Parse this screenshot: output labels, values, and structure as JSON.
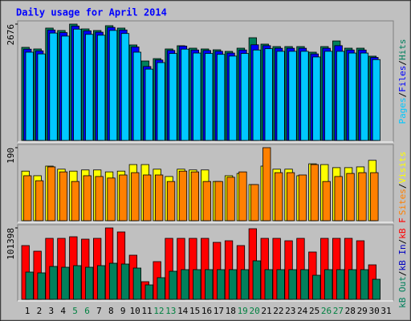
{
  "title": "Daily usage for April 2014",
  "legend_separator": "/",
  "highlight_categories": [
    "5",
    "6",
    "12",
    "13",
    "19",
    "20",
    "26",
    "27"
  ],
  "highlight_color": "#008040",
  "chart_data": [
    {
      "type": "bar",
      "ylim": [
        0,
        2676
      ],
      "yticks": [
        2676
      ],
      "series": [
        {
          "name": "Hits",
          "color": "#00805c",
          "values": [
            2141,
            2104,
            2584,
            2528,
            2676,
            2565,
            2528,
            2639,
            2584,
            2196,
            1827,
            1882,
            2104,
            2178,
            2122,
            2104,
            2085,
            2048,
            2122,
            2362,
            2215,
            2159,
            2159,
            2159,
            2030,
            2159,
            2288,
            2122,
            2122,
            1938,
            null
          ]
        },
        {
          "name": "Files",
          "color": "#0000ff",
          "values": [
            2100,
            2060,
            2540,
            2480,
            2630,
            2520,
            2490,
            2600,
            2540,
            2150,
            1700,
            1850,
            2070,
            2170,
            2080,
            2070,
            2050,
            2010,
            2080,
            2200,
            2180,
            2120,
            2120,
            2120,
            1990,
            2120,
            2180,
            2080,
            2080,
            1910,
            null
          ]
        },
        {
          "name": "Pages",
          "color": "#00c8ff",
          "values": [
            2030,
            1990,
            2470,
            2400,
            2560,
            2440,
            2420,
            2530,
            2460,
            2030,
            1640,
            1790,
            2000,
            2100,
            2010,
            2000,
            1980,
            1940,
            2000,
            2080,
            2110,
            2050,
            2050,
            2050,
            1920,
            2050,
            2050,
            2010,
            2010,
            1860,
            null
          ]
        }
      ]
    },
    {
      "type": "bar",
      "ylim": [
        0,
        190
      ],
      "yticks": [
        190
      ],
      "series": [
        {
          "name": "Visits",
          "color": "#ffff00",
          "values": [
            129,
            117,
            142,
            134,
            129,
            132,
            132,
            127,
            129,
            146,
            146,
            134,
            115,
            134,
            132,
            132,
            102,
            117,
            123,
            94,
            142,
            134,
            134,
            117,
            148,
            146,
            138,
            138,
            140,
            157,
            null
          ]
        },
        {
          "name": "Sites",
          "color": "#ff8000",
          "values": [
            117,
            104,
            140,
            127,
            102,
            117,
            115,
            111,
            119,
            125,
            119,
            119,
            102,
            129,
            127,
            102,
            102,
            113,
            127,
            94,
            190,
            125,
            125,
            119,
            146,
            102,
            115,
            123,
            125,
            125,
            null
          ]
        }
      ]
    },
    {
      "type": "bar",
      "ylim": [
        0,
        101398
      ],
      "yticks": [
        101398
      ],
      "categories": [
        "1",
        "2",
        "3",
        "4",
        "5",
        "6",
        "7",
        "8",
        "9",
        "10",
        "11",
        "12",
        "13",
        "14",
        "15",
        "16",
        "17",
        "18",
        "19",
        "20",
        "21",
        "22",
        "23",
        "24",
        "25",
        "26",
        "27",
        "28",
        "29",
        "30",
        "31"
      ],
      "series": [
        {
          "name": "kB F",
          "color": "#ff0000",
          "values": [
            76333,
            68358,
            86587,
            86587,
            88865,
            85448,
            86587,
            101398,
            95701,
            62662,
            25065,
            53547,
            86587,
            86587,
            86587,
            86587,
            80890,
            83169,
            76333,
            100259,
            86587,
            86587,
            83169,
            86587,
            67219,
            86587,
            86587,
            86587,
            83169,
            48990,
            null
          ]
        },
        {
          "name": "kB In",
          "color": "#0000c0",
          "values": [
            0,
            0,
            0,
            0,
            0,
            0,
            0,
            0,
            0,
            0,
            0,
            0,
            0,
            0,
            0,
            0,
            0,
            0,
            0,
            0,
            0,
            0,
            0,
            0,
            0,
            0,
            0,
            0,
            0,
            0,
            null
          ]
        },
        {
          "name": "kB Out",
          "color": "#00805c",
          "values": [
            38736,
            37597,
            46711,
            45572,
            47851,
            45572,
            47851,
            51269,
            50129,
            44433,
            20507,
            30761,
            39876,
            42154,
            42154,
            42154,
            42154,
            42154,
            42154,
            54686,
            42154,
            42154,
            42154,
            42154,
            34179,
            42154,
            42154,
            42154,
            42154,
            28483,
            null
          ]
        }
      ]
    }
  ]
}
